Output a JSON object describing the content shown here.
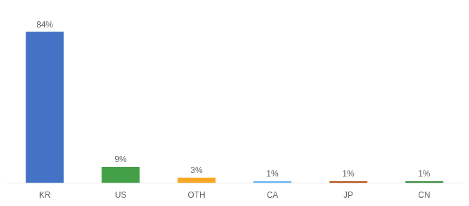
{
  "chart_data": {
    "type": "bar",
    "categories": [
      "KR",
      "US",
      "OTH",
      "CA",
      "JP",
      "CN"
    ],
    "values": [
      84,
      9,
      3,
      1,
      1,
      1
    ],
    "value_labels": [
      "84%",
      "9%",
      "3%",
      "1%",
      "1%",
      "1%"
    ],
    "colors": [
      "#4472c4",
      "#43a047",
      "#f9a825",
      "#64b5f6",
      "#b5541b",
      "#388e3c"
    ],
    "ylim": [
      0,
      94
    ],
    "data_labels": true,
    "tick_labels": "x",
    "grid": false
  }
}
